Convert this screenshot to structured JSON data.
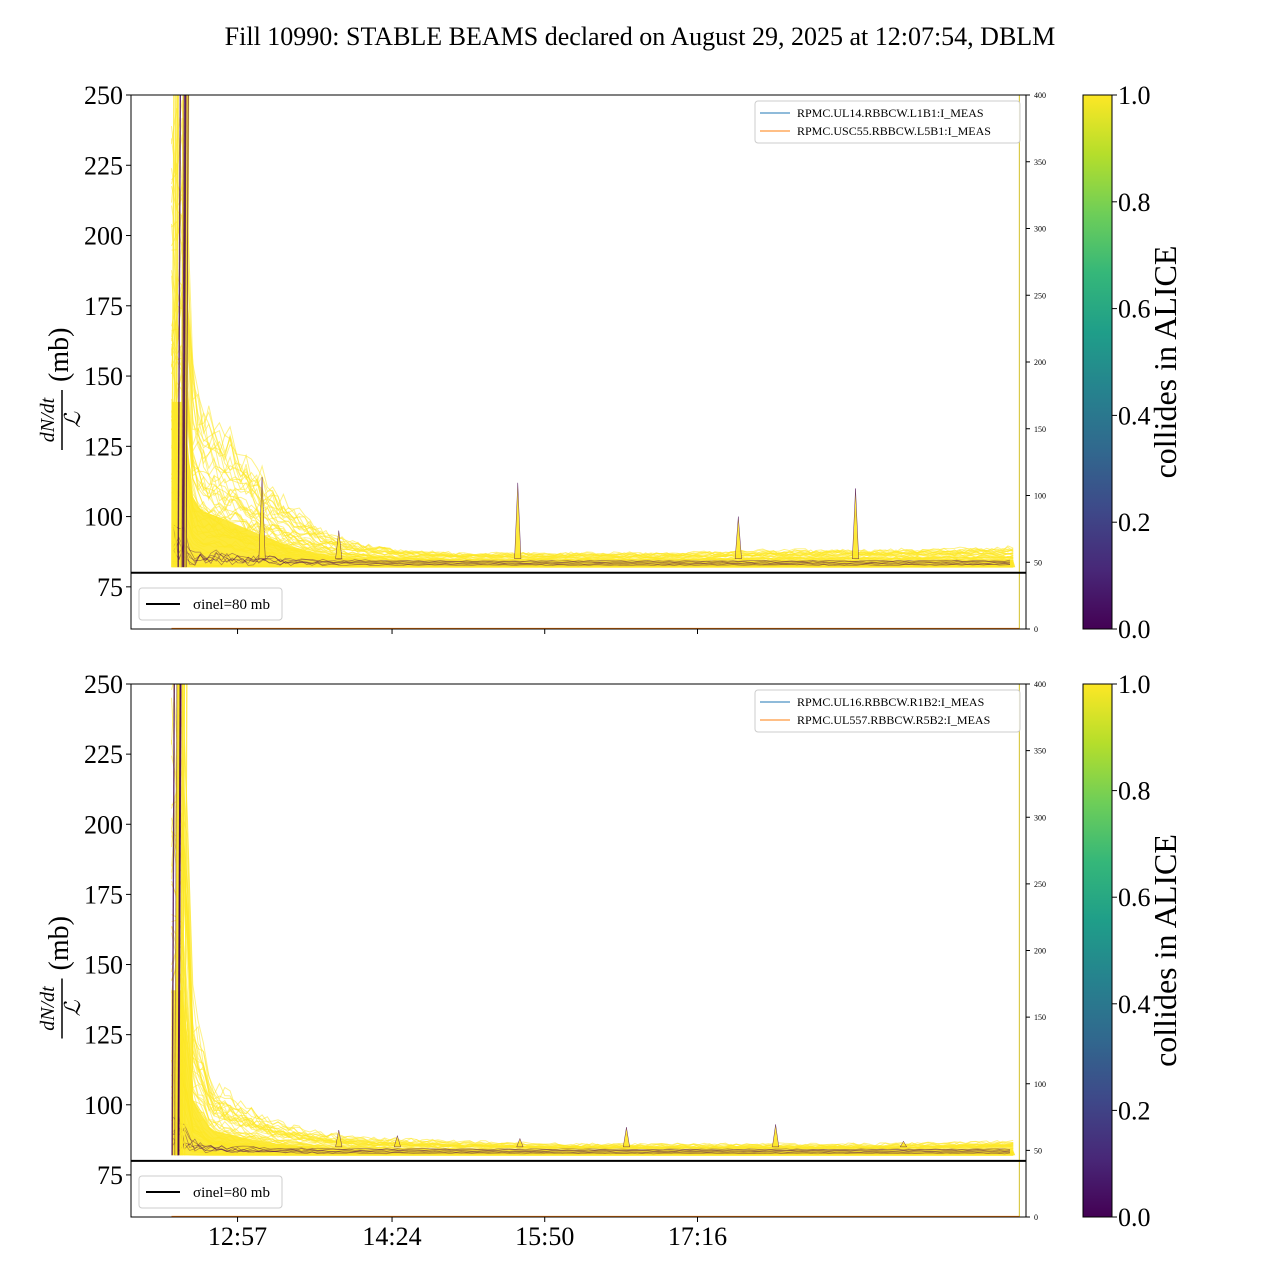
{
  "figure": {
    "title": "Fill 10990: STABLE BEAMS declared on August 29, 2025 at 12:07:54, DBLM"
  },
  "chart_data": [
    {
      "type": "line",
      "panel": "top",
      "ylabel": "dN/dt / L (mb)",
      "ylim": [
        60,
        250
      ],
      "yticks": [
        75,
        100,
        125,
        150,
        175,
        200,
        225,
        250
      ],
      "ylim_right": [
        0,
        400
      ],
      "yticks_right": [
        0,
        50,
        100,
        150,
        200,
        250,
        300,
        350,
        400
      ],
      "xticks": [
        "12:57",
        "14:24",
        "15:50",
        "17:16"
      ],
      "x_range_hours": [
        11.95,
        20.35
      ],
      "xtick_hours": [
        12.95,
        14.4,
        15.833,
        17.267
      ],
      "legend_series": [
        "RPMC.UL14.RBBCW.L1B1:I_MEAS",
        "RPMC.USC55.RBBCW.L5B1:I_MEAS"
      ],
      "legend_ref": "σinel=80 mb",
      "reference_line": 80,
      "colorbar_label": "collides in ALICE",
      "colorbar_ticks": [
        "0.0",
        "0.2",
        "0.4",
        "0.6",
        "0.8",
        "1.0"
      ],
      "band_start_hours": 12.33,
      "band_end_hours": 20.25,
      "decay_envelope": [
        [
          12.33,
          250
        ],
        [
          12.45,
          250
        ],
        [
          12.5,
          160
        ],
        [
          12.6,
          140
        ],
        [
          12.8,
          132
        ],
        [
          13.1,
          118
        ],
        [
          13.4,
          105
        ],
        [
          13.7,
          96
        ],
        [
          14.0,
          91
        ],
        [
          14.5,
          88
        ],
        [
          15.0,
          87
        ],
        [
          16.0,
          87
        ],
        [
          17.0,
          87
        ],
        [
          18.0,
          88
        ],
        [
          19.0,
          88
        ],
        [
          20.25,
          89
        ]
      ],
      "band_floor": 82,
      "spikes": [
        [
          13.18,
          114
        ],
        [
          13.9,
          95
        ],
        [
          15.58,
          112
        ],
        [
          17.65,
          100
        ],
        [
          18.75,
          110
        ]
      ]
    },
    {
      "type": "line",
      "panel": "bottom",
      "ylabel": "dN/dt / L (mb)",
      "ylim": [
        60,
        250
      ],
      "yticks": [
        75,
        100,
        125,
        150,
        175,
        200,
        225,
        250
      ],
      "ylim_right": [
        0,
        400
      ],
      "yticks_right": [
        0,
        50,
        100,
        150,
        200,
        250,
        300,
        350,
        400
      ],
      "xticks": [
        "12:57",
        "14:24",
        "15:50",
        "17:16"
      ],
      "x_range_hours": [
        11.95,
        20.35
      ],
      "xtick_hours": [
        12.95,
        14.4,
        15.833,
        17.267
      ],
      "legend_series": [
        "RPMC.UL16.RBBCW.R1B2:I_MEAS",
        "RPMC.UL557.RBBCW.R5B2:I_MEAS"
      ],
      "legend_ref": "σinel=80 mb",
      "reference_line": 80,
      "colorbar_label": "collides in ALICE",
      "colorbar_ticks": [
        "0.0",
        "0.2",
        "0.4",
        "0.6",
        "0.8",
        "1.0"
      ],
      "band_start_hours": 12.33,
      "band_end_hours": 20.25,
      "decay_envelope": [
        [
          12.33,
          250
        ],
        [
          12.45,
          250
        ],
        [
          12.52,
          140
        ],
        [
          12.7,
          108
        ],
        [
          13.0,
          100
        ],
        [
          13.3,
          94
        ],
        [
          13.7,
          90
        ],
        [
          14.2,
          88
        ],
        [
          15.0,
          87
        ],
        [
          16.0,
          86
        ],
        [
          17.0,
          86
        ],
        [
          18.0,
          86
        ],
        [
          19.0,
          86
        ],
        [
          20.25,
          87
        ]
      ],
      "band_floor": 82,
      "spikes": [
        [
          13.9,
          91
        ],
        [
          14.45,
          89
        ],
        [
          15.6,
          88
        ],
        [
          16.6,
          92
        ],
        [
          18.0,
          93
        ],
        [
          19.2,
          87
        ]
      ]
    }
  ],
  "colors": {
    "line_yellow": "#fde725",
    "line_dark": "#440154",
    "line_blue": "#1f77b4",
    "line_orange": "#ff7f0e",
    "reference": "#000000",
    "viridis": [
      "#440154",
      "#482878",
      "#3e4989",
      "#31688e",
      "#26828e",
      "#1f9e89",
      "#35b779",
      "#6ece58",
      "#b5de2b",
      "#fde725"
    ]
  }
}
